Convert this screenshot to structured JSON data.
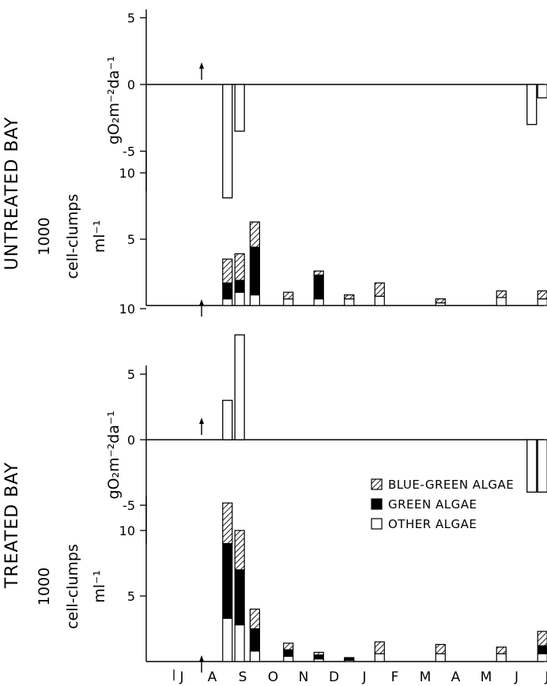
{
  "chart_data": {
    "type": "bar",
    "months": [
      "J",
      "A",
      "S",
      "O",
      "N",
      "D",
      "J",
      "F",
      "M",
      "A",
      "M",
      "J",
      "J"
    ],
    "legend": {
      "placement": "right, beside treated-bay cell-clumps panel",
      "items": [
        {
          "key": "blue_green",
          "label": "BLUE-GREEN ALGAE",
          "pattern": "hatched"
        },
        {
          "key": "green",
          "label": "GREEN ALGAE",
          "pattern": "solid black"
        },
        {
          "key": "other",
          "label": "OTHER ALGAE",
          "pattern": "white"
        }
      ]
    },
    "groups": [
      {
        "label": "UNTREATED BAY",
        "oxygen": {
          "ylabel": "gO₂m⁻²da⁻¹",
          "ylim": [
            -8,
            11
          ],
          "ticks": [
            {
              "v": 10,
              "t": "10"
            },
            {
              "v": 5,
              "t": "5"
            },
            {
              "v": 0,
              "t": "0"
            },
            {
              "v": -5,
              "t": "-5"
            }
          ],
          "bars": [
            {
              "x": 1.5,
              "value": -8.5
            },
            {
              "x": 1.9,
              "value": -3.5
            },
            {
              "x": 11.5,
              "value": -3
            },
            {
              "x": 11.85,
              "value": -1
            }
          ],
          "arrow_x": 0.65
        },
        "cells": {
          "ylabel_line1": "1000",
          "ylabel_line2": "cell-clumps",
          "ylabel_line3": "ml⁻¹",
          "ylim": [
            0,
            11
          ],
          "ticks": [
            {
              "v": 10,
              "t": "10"
            },
            {
              "v": 5,
              "t": "5"
            }
          ],
          "bars": [
            {
              "x": 1.5,
              "other": 0.5,
              "green": 1.2,
              "blue_green": 1.8
            },
            {
              "x": 1.9,
              "other": 1.0,
              "green": 0.9,
              "blue_green": 2.0
            },
            {
              "x": 2.4,
              "other": 0.8,
              "green": 3.6,
              "blue_green": 1.9
            },
            {
              "x": 3.5,
              "other": 0.5,
              "green": 0.0,
              "blue_green": 0.5
            },
            {
              "x": 4.5,
              "other": 0.5,
              "green": 1.8,
              "blue_green": 0.3
            },
            {
              "x": 5.5,
              "other": 0.5,
              "green": 0.0,
              "blue_green": 0.3
            },
            {
              "x": 6.5,
              "other": 0.7,
              "green": 0.0,
              "blue_green": 1.0
            },
            {
              "x": 8.5,
              "other": 0.2,
              "green": 0.0,
              "blue_green": 0.3
            },
            {
              "x": 10.5,
              "other": 0.6,
              "green": 0.0,
              "blue_green": 0.5
            },
            {
              "x": 11.85,
              "other": 0.5,
              "green": 0.0,
              "blue_green": 0.6
            }
          ],
          "arrow_x": 0.65
        }
      },
      {
        "label": "TREATED BAY",
        "oxygen": {
          "ylabel": "gO₂m⁻²da⁻¹",
          "ylim": [
            -8,
            11
          ],
          "ticks": [
            {
              "v": 10,
              "t": "10"
            },
            {
              "v": 5,
              "t": "5"
            },
            {
              "v": 0,
              "t": "0"
            },
            {
              "v": -5,
              "t": "-5"
            }
          ],
          "bars": [
            {
              "x": 1.5,
              "value": 3
            },
            {
              "x": 1.9,
              "value": 8
            },
            {
              "x": 11.5,
              "value": -4
            },
            {
              "x": 11.85,
              "value": -4
            }
          ],
          "arrow_x": 0.65
        },
        "cells": {
          "ylabel_line1": "1000",
          "ylabel_line2": "cell-clumps",
          "ylabel_line3": "ml⁻¹",
          "ylim": [
            0,
            11.5
          ],
          "ticks": [
            {
              "v": 10,
              "t": "10"
            },
            {
              "v": 5,
              "t": "5"
            }
          ],
          "bars": [
            {
              "x": 1.5,
              "other": 3.3,
              "green": 5.7,
              "blue_green": 3.1
            },
            {
              "x": 1.9,
              "other": 2.8,
              "green": 4.2,
              "blue_green": 3.0
            },
            {
              "x": 2.4,
              "other": 0.8,
              "green": 1.7,
              "blue_green": 1.5
            },
            {
              "x": 3.5,
              "other": 0.4,
              "green": 0.5,
              "blue_green": 0.5
            },
            {
              "x": 4.5,
              "other": 0.2,
              "green": 0.3,
              "blue_green": 0.2
            },
            {
              "x": 5.5,
              "other": 0.1,
              "green": 0.2,
              "blue_green": 0.0
            },
            {
              "x": 6.5,
              "other": 0.6,
              "green": 0.0,
              "blue_green": 0.9
            },
            {
              "x": 8.5,
              "other": 0.6,
              "green": 0.0,
              "blue_green": 0.7
            },
            {
              "x": 10.5,
              "other": 0.6,
              "green": 0.0,
              "blue_green": 0.5
            },
            {
              "x": 11.85,
              "other": 0.6,
              "green": 0.6,
              "blue_green": 1.1
            }
          ],
          "arrow_x": 0.65
        }
      }
    ]
  }
}
